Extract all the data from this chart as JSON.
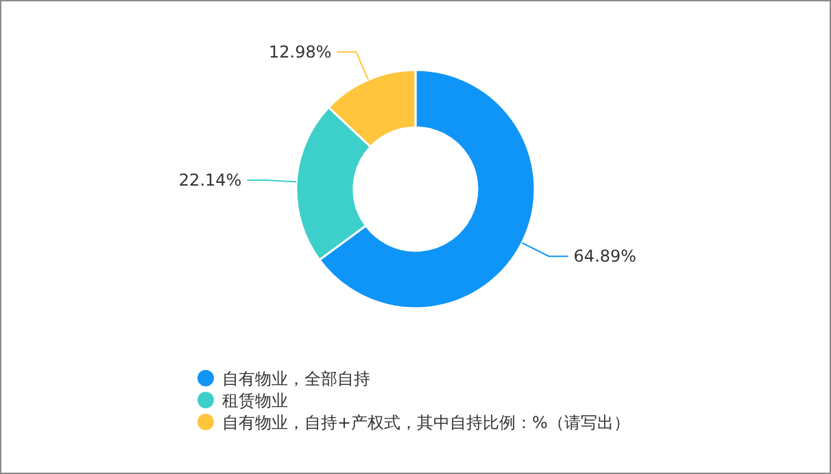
{
  "chart_data": {
    "type": "donut",
    "categories": [
      "自有物业，全部自持",
      "租赁物业",
      "自有物业，自持+产权式，其中自持比例：%（请写出）"
    ],
    "values": [
      64.89,
      22.14,
      12.98
    ],
    "colors": [
      "#0f95f7",
      "#3dcfc9",
      "#ffc53d"
    ],
    "value_labels": [
      "64.89%",
      "22.14%",
      "12.98%"
    ],
    "legend": "bottom"
  }
}
